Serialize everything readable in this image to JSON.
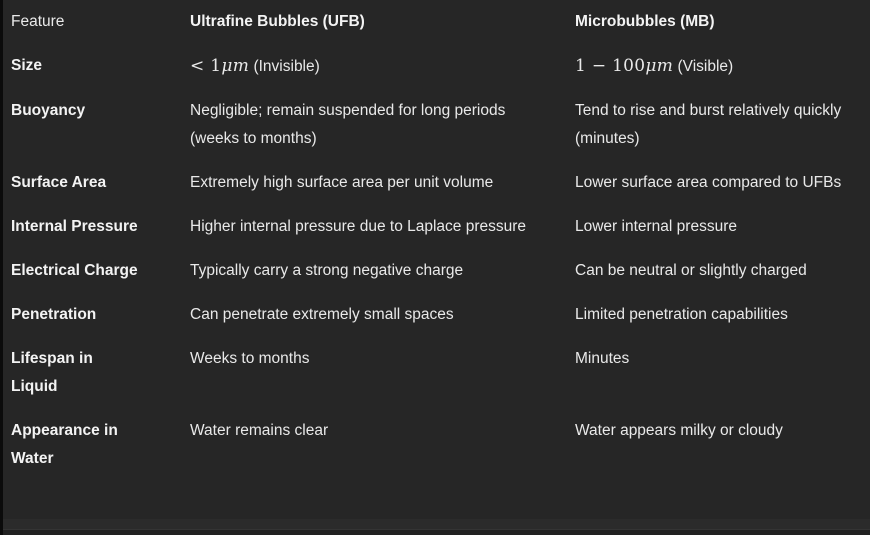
{
  "page": {
    "background_color": "#262626",
    "left_edge_color": "#0b0b0b",
    "band_color": "#2b2b2b",
    "bottom_strip_color": "#212121"
  },
  "table": {
    "header": {
      "feature": "Feature",
      "ufb": "Ultrafine Bubbles (UFB)",
      "mb": "Microbubbles (MB)"
    },
    "rows": [
      {
        "feature": "Size",
        "ufb": [
          {
            "type": "math",
            "text": "< 1"
          },
          {
            "type": "math-italic",
            "text": "μm"
          },
          {
            "type": "text",
            "text": " (Invisible)"
          }
        ],
        "mb": [
          {
            "type": "math",
            "text": "1 − 100"
          },
          {
            "type": "math-italic",
            "text": "μm"
          },
          {
            "type": "text",
            "text": " (Visible)"
          }
        ]
      },
      {
        "feature": "Buoyancy",
        "ufb": [
          {
            "type": "text",
            "text": "Negligible; remain suspended for long periods (weeks to months)"
          }
        ],
        "mb": [
          {
            "type": "text",
            "text": "Tend to rise and burst relatively quickly (minutes)"
          }
        ]
      },
      {
        "feature": "Surface Area",
        "ufb": [
          {
            "type": "text",
            "text": "Extremely high surface area per unit volume"
          }
        ],
        "mb": [
          {
            "type": "text",
            "text": "Lower surface area compared to UFBs"
          }
        ]
      },
      {
        "feature": "Internal Pressure",
        "ufb": [
          {
            "type": "text",
            "text": "Higher internal pressure due to Laplace pressure"
          }
        ],
        "mb": [
          {
            "type": "text",
            "text": "Lower internal pressure"
          }
        ]
      },
      {
        "feature": "Electrical Charge",
        "ufb": [
          {
            "type": "text",
            "text": "Typically carry a strong negative charge"
          }
        ],
        "mb": [
          {
            "type": "text",
            "text": "Can be neutral or slightly charged"
          }
        ]
      },
      {
        "feature": "Penetration",
        "ufb": [
          {
            "type": "text",
            "text": "Can penetrate extremely small spaces"
          }
        ],
        "mb": [
          {
            "type": "text",
            "text": "Limited penetration capabilities"
          }
        ]
      },
      {
        "feature": "Lifespan in Liquid",
        "ufb": [
          {
            "type": "text",
            "text": "Weeks to months"
          }
        ],
        "mb": [
          {
            "type": "text",
            "text": "Minutes"
          }
        ]
      },
      {
        "feature": "Appearance in Water",
        "ufb": [
          {
            "type": "text",
            "text": "Water remains clear"
          }
        ],
        "mb": [
          {
            "type": "text",
            "text": "Water appears milky or cloudy"
          }
        ]
      }
    ]
  }
}
